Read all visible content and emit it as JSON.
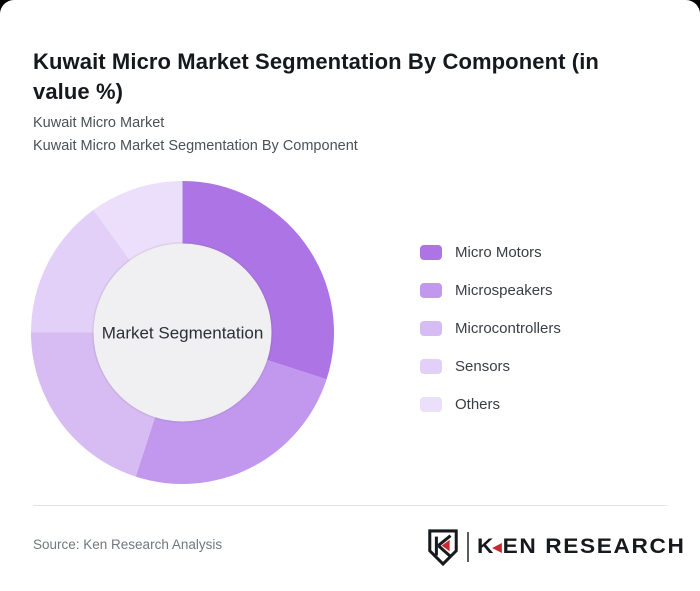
{
  "card": {
    "title": "Kuwait Micro Market Segmentation By Component (in value %)",
    "subtitle_line1": "Kuwait Micro Market",
    "subtitle_line2": "Kuwait Micro Market Segmentation By Component"
  },
  "chart_data": {
    "type": "pie",
    "variant": "donut",
    "title": "Kuwait Micro Market Segmentation By Component (in value %)",
    "unit": "value %",
    "center_label": "Market Segmentation",
    "start_angle_deg": 0,
    "direction": "clockwise",
    "legend_position": "right",
    "inner_circle_color": "#f0eff1",
    "segments": [
      {
        "label": "Micro Motors",
        "value": 30,
        "color": "#ad74e5"
      },
      {
        "label": "Microspeakers",
        "value": 25,
        "color": "#c298ef"
      },
      {
        "label": "Microcontrollers",
        "value": 20,
        "color": "#d7bbf3"
      },
      {
        "label": "Sensors",
        "value": 15,
        "color": "#e3d0f8"
      },
      {
        "label": "Others",
        "value": 10,
        "color": "#ecdffb"
      }
    ]
  },
  "footer": {
    "source": "Source: Ken Research Analysis"
  },
  "brand": {
    "wordmark_k": "K",
    "wordmark_rest": "EN RESEARCH",
    "accent_red": "#c8292f",
    "dark": "#17191d"
  }
}
